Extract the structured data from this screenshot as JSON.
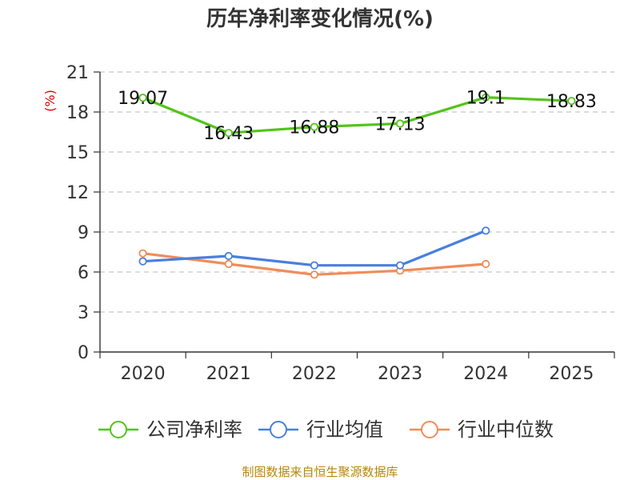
{
  "chart_data": {
    "type": "line",
    "title": "历年净利率变化情况(%)",
    "ylabel": "(%)",
    "categories": [
      "2020",
      "2021",
      "2022",
      "2023",
      "2024",
      "2025"
    ],
    "ylim": [
      0,
      21
    ],
    "yticks": [
      0,
      3,
      6,
      9,
      12,
      15,
      18,
      21
    ],
    "grid": true,
    "legend_position": "bottom",
    "series": [
      {
        "name": "公司净利率",
        "color": "#52c41a",
        "values": [
          19.07,
          16.43,
          16.88,
          17.13,
          19.1,
          18.83
        ],
        "labels": [
          "19.07",
          "16.43",
          "16.88",
          "17.13",
          "19.1",
          "18.83"
        ]
      },
      {
        "name": "行业均值",
        "color": "#4a7fdc",
        "values": [
          6.8,
          7.2,
          6.5,
          6.5,
          9.1,
          null
        ]
      },
      {
        "name": "行业中位数",
        "color": "#f08c5a",
        "values": [
          7.4,
          6.6,
          5.8,
          6.1,
          6.6,
          null
        ]
      }
    ]
  },
  "footer": {
    "source": "制图数据来自恒生聚源数据库"
  }
}
